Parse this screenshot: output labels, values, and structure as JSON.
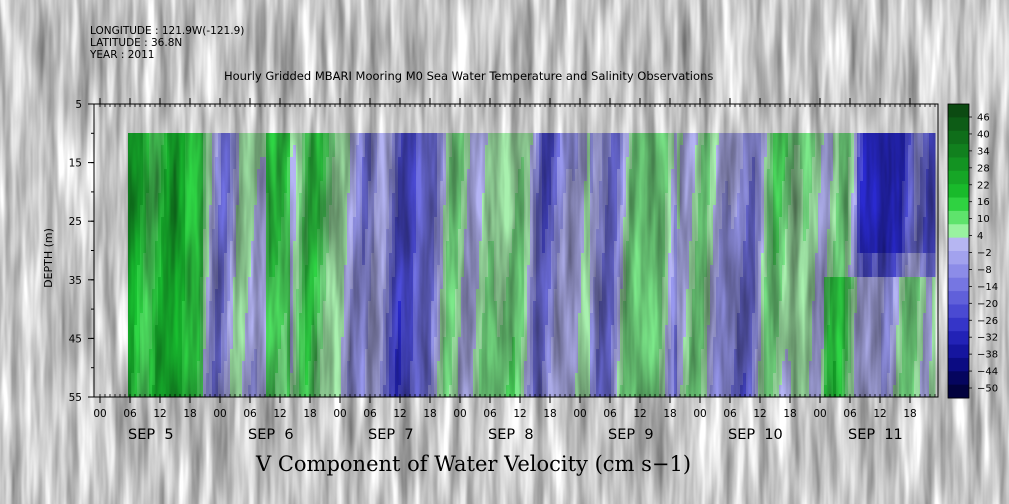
{
  "header": {
    "longitude": "LONGITUDE : 121.9W(-121.9)",
    "latitude": "LATITUDE : 36.8N",
    "year": "YEAR : 2011"
  },
  "chart_data": {
    "type": "heatmap",
    "title": "Hourly Gridded MBARI Mooring M0 Sea Water Temperature and Salinity Observations",
    "bottom_label": "V Component of Water Velocity (cm s−1)",
    "ylabel": "DEPTH (m)",
    "y_ticks": [
      "5",
      "15",
      "25",
      "35",
      "45",
      "55"
    ],
    "ylim": [
      55,
      5
    ],
    "data_depth_range": [
      10,
      55
    ],
    "x_hour_ticks": [
      "00",
      "06",
      "12",
      "18",
      "00",
      "06",
      "12",
      "18",
      "00",
      "06",
      "12",
      "18",
      "00",
      "06",
      "12",
      "18",
      "00",
      "06",
      "12",
      "18",
      "00",
      "06",
      "12",
      "18",
      "00",
      "06",
      "12",
      "18"
    ],
    "x_day_labels": [
      "SEP  5",
      "SEP  6",
      "SEP  7",
      "SEP  8",
      "SEP  9",
      "SEP  10",
      "SEP  11"
    ],
    "colorbar_labels": [
      "46",
      "40",
      "34",
      "28",
      "22",
      "16",
      "10",
      "4",
      "−2",
      "−8",
      "−14",
      "−20",
      "−26",
      "−32",
      "−38",
      "−44",
      "−50"
    ],
    "colorbar_colors": [
      "#0c4a12",
      "#0d5c16",
      "#0f6e1a",
      "#11801e",
      "#139322",
      "#16a626",
      "#19ba2b",
      "#2fd241",
      "#5ee36c",
      "#99f2a0",
      "#b6b6f2",
      "#a2a2ee",
      "#8c8ce8",
      "#7676e2",
      "#6060da",
      "#4a4ad2",
      "#3535c8",
      "#2222b6",
      "#15159e",
      "#0b0b82",
      "#05055e",
      "#02023e"
    ],
    "velocity_pattern_by_day": [
      {
        "day": "SEP 5",
        "dominant": "green (positive)"
      },
      {
        "day": "SEP 6",
        "dominant": "mixed, strong green near 06"
      },
      {
        "day": "SEP 7",
        "dominant": "mixed green/blue"
      },
      {
        "day": "SEP 8",
        "dominant": "mixed, blue after 12"
      },
      {
        "day": "SEP 9",
        "dominant": "blue (negative)"
      },
      {
        "day": "SEP 10",
        "dominant": "mixed, green at depth after 12"
      },
      {
        "day": "SEP 11",
        "dominant": "green at depth, blue in upper layer near 12"
      }
    ]
  }
}
